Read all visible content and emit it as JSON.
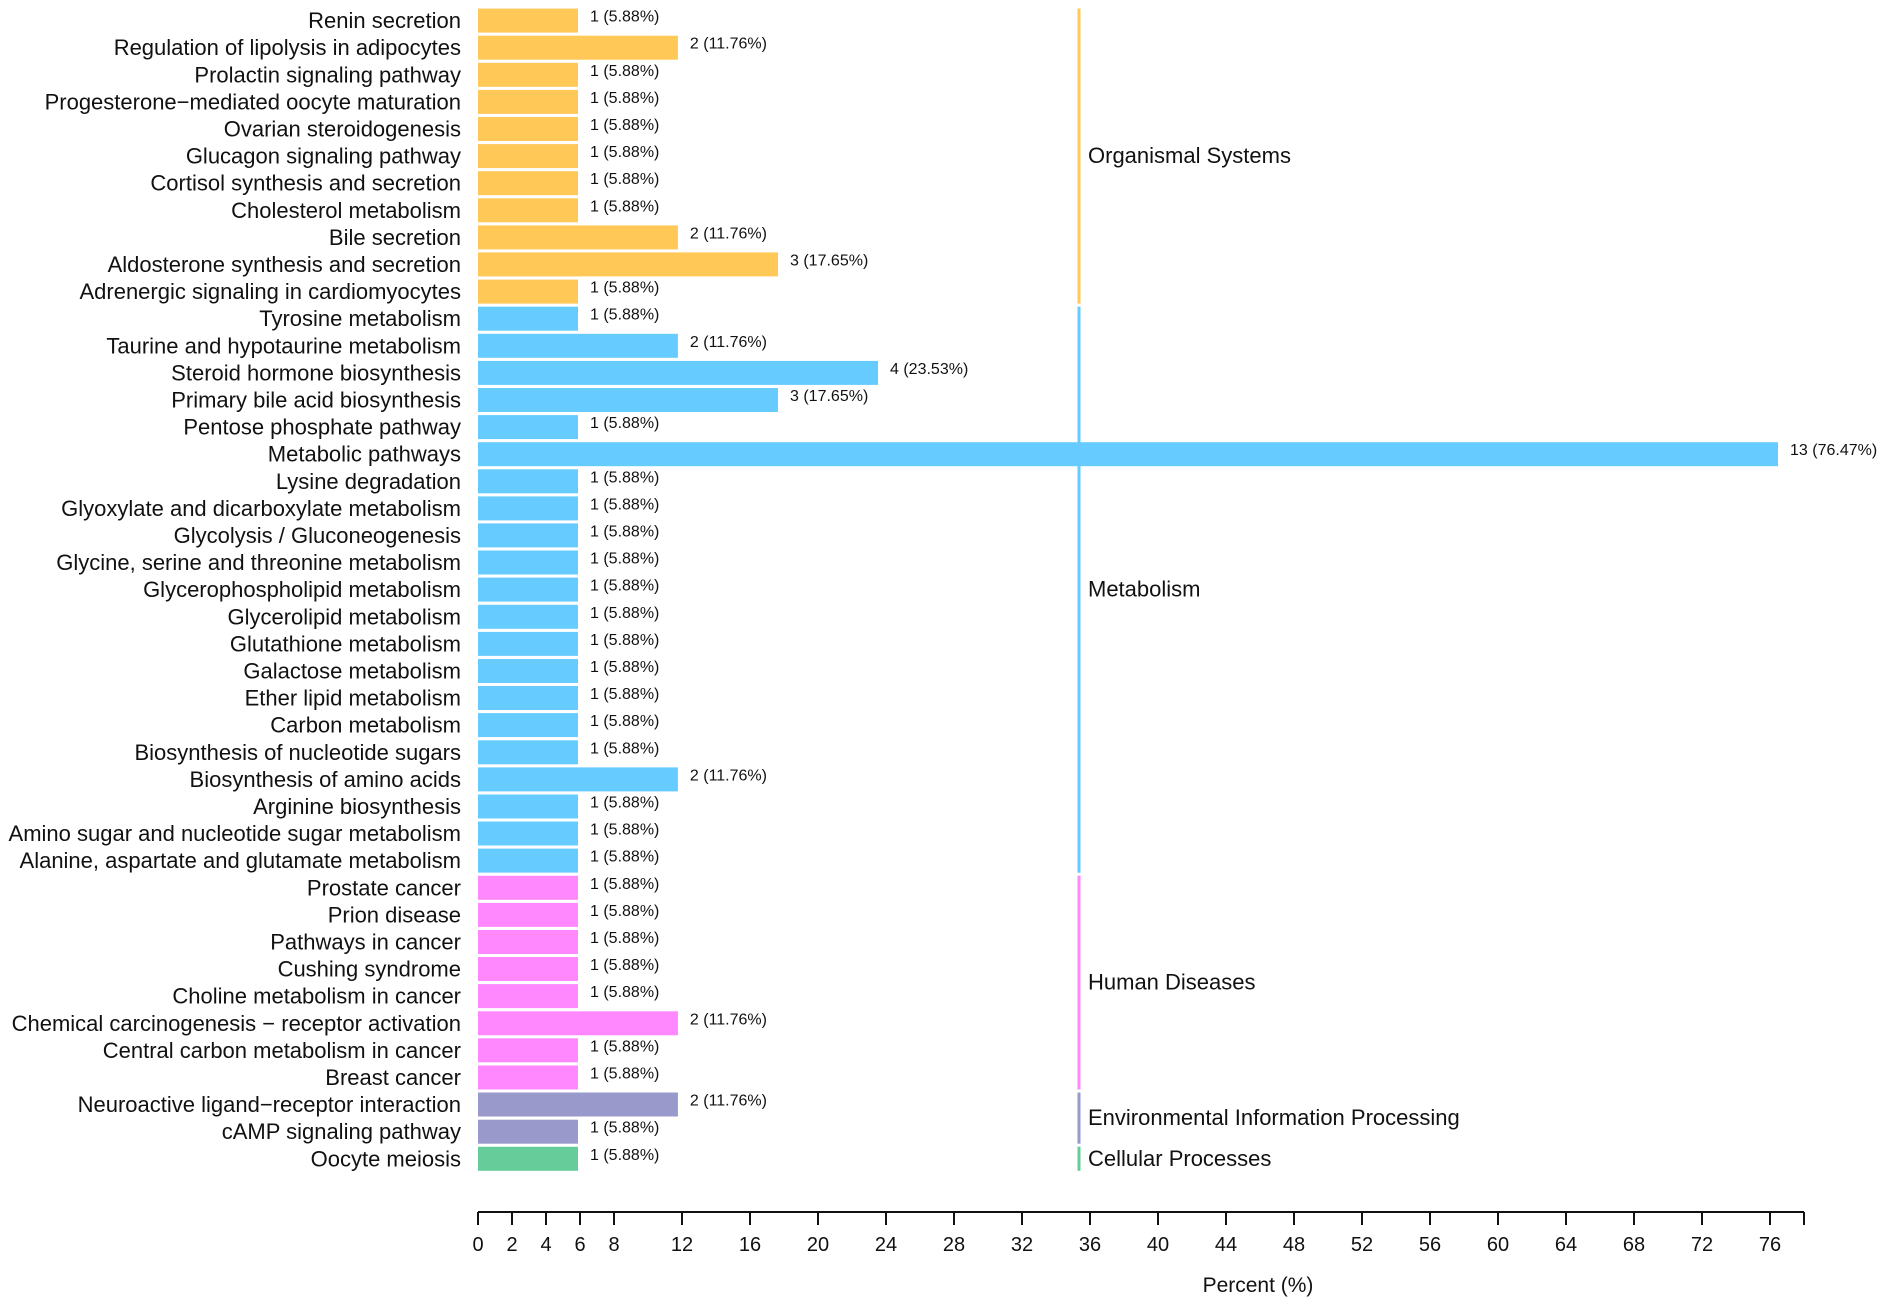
{
  "chart_data": {
    "type": "bar",
    "orientation": "horizontal",
    "title": "",
    "xlabel": "Percent (%)",
    "ylabel": "",
    "xlim": [
      0,
      78
    ],
    "xticks": [
      0,
      2,
      4,
      6,
      8,
      12,
      16,
      20,
      24,
      28,
      32,
      36,
      40,
      44,
      48,
      52,
      56,
      60,
      64,
      68,
      72,
      76
    ],
    "grid": false,
    "groups": [
      {
        "name": "Organismal Systems",
        "color": "#FFC857",
        "items": [
          {
            "label": "Renin secretion",
            "value": 5.88,
            "count": 1,
            "text": "1 (5.88%)"
          },
          {
            "label": "Regulation of lipolysis in adipocytes",
            "value": 11.76,
            "count": 2,
            "text": "2 (11.76%)"
          },
          {
            "label": "Prolactin signaling pathway",
            "value": 5.88,
            "count": 1,
            "text": "1 (5.88%)"
          },
          {
            "label": "Progesterone−mediated oocyte maturation",
            "value": 5.88,
            "count": 1,
            "text": "1 (5.88%)"
          },
          {
            "label": "Ovarian steroidogenesis",
            "value": 5.88,
            "count": 1,
            "text": "1 (5.88%)"
          },
          {
            "label": "Glucagon signaling pathway",
            "value": 5.88,
            "count": 1,
            "text": "1 (5.88%)"
          },
          {
            "label": "Cortisol synthesis and secretion",
            "value": 5.88,
            "count": 1,
            "text": "1 (5.88%)"
          },
          {
            "label": "Cholesterol metabolism",
            "value": 5.88,
            "count": 1,
            "text": "1 (5.88%)"
          },
          {
            "label": "Bile secretion",
            "value": 11.76,
            "count": 2,
            "text": "2 (11.76%)"
          },
          {
            "label": "Aldosterone synthesis and secretion",
            "value": 17.65,
            "count": 3,
            "text": "3 (17.65%)"
          },
          {
            "label": "Adrenergic signaling in cardiomyocytes",
            "value": 5.88,
            "count": 1,
            "text": "1 (5.88%)"
          }
        ]
      },
      {
        "name": "Metabolism",
        "color": "#66CCFF",
        "items": [
          {
            "label": "Tyrosine metabolism",
            "value": 5.88,
            "count": 1,
            "text": "1 (5.88%)"
          },
          {
            "label": "Taurine and hypotaurine metabolism",
            "value": 11.76,
            "count": 2,
            "text": "2 (11.76%)"
          },
          {
            "label": "Steroid hormone biosynthesis",
            "value": 23.53,
            "count": 4,
            "text": "4 (23.53%)"
          },
          {
            "label": "Primary bile acid biosynthesis",
            "value": 17.65,
            "count": 3,
            "text": "3 (17.65%)"
          },
          {
            "label": "Pentose phosphate pathway",
            "value": 5.88,
            "count": 1,
            "text": "1 (5.88%)"
          },
          {
            "label": "Metabolic pathways",
            "value": 76.47,
            "count": 13,
            "text": "13 (76.47%)"
          },
          {
            "label": "Lysine degradation",
            "value": 5.88,
            "count": 1,
            "text": "1 (5.88%)"
          },
          {
            "label": "Glyoxylate and dicarboxylate metabolism",
            "value": 5.88,
            "count": 1,
            "text": "1 (5.88%)"
          },
          {
            "label": "Glycolysis / Gluconeogenesis",
            "value": 5.88,
            "count": 1,
            "text": "1 (5.88%)"
          },
          {
            "label": "Glycine, serine and threonine metabolism",
            "value": 5.88,
            "count": 1,
            "text": "1 (5.88%)"
          },
          {
            "label": "Glycerophospholipid metabolism",
            "value": 5.88,
            "count": 1,
            "text": "1 (5.88%)"
          },
          {
            "label": "Glycerolipid metabolism",
            "value": 5.88,
            "count": 1,
            "text": "1 (5.88%)"
          },
          {
            "label": "Glutathione metabolism",
            "value": 5.88,
            "count": 1,
            "text": "1 (5.88%)"
          },
          {
            "label": "Galactose metabolism",
            "value": 5.88,
            "count": 1,
            "text": "1 (5.88%)"
          },
          {
            "label": "Ether lipid metabolism",
            "value": 5.88,
            "count": 1,
            "text": "1 (5.88%)"
          },
          {
            "label": "Carbon metabolism",
            "value": 5.88,
            "count": 1,
            "text": "1 (5.88%)"
          },
          {
            "label": "Biosynthesis of nucleotide sugars",
            "value": 5.88,
            "count": 1,
            "text": "1 (5.88%)"
          },
          {
            "label": "Biosynthesis of amino acids",
            "value": 11.76,
            "count": 2,
            "text": "2 (11.76%)"
          },
          {
            "label": "Arginine biosynthesis",
            "value": 5.88,
            "count": 1,
            "text": "1 (5.88%)"
          },
          {
            "label": "Amino sugar and nucleotide sugar metabolism",
            "value": 5.88,
            "count": 1,
            "text": "1 (5.88%)"
          },
          {
            "label": "Alanine, aspartate and glutamate metabolism",
            "value": 5.88,
            "count": 1,
            "text": "1 (5.88%)"
          }
        ]
      },
      {
        "name": "Human Diseases",
        "color": "#FF88FF",
        "items": [
          {
            "label": "Prostate cancer",
            "value": 5.88,
            "count": 1,
            "text": "1 (5.88%)"
          },
          {
            "label": "Prion disease",
            "value": 5.88,
            "count": 1,
            "text": "1 (5.88%)"
          },
          {
            "label": "Pathways in cancer",
            "value": 5.88,
            "count": 1,
            "text": "1 (5.88%)"
          },
          {
            "label": "Cushing syndrome",
            "value": 5.88,
            "count": 1,
            "text": "1 (5.88%)"
          },
          {
            "label": "Choline metabolism in cancer",
            "value": 5.88,
            "count": 1,
            "text": "1 (5.88%)"
          },
          {
            "label": "Chemical carcinogenesis − receptor activation",
            "value": 11.76,
            "count": 2,
            "text": "2 (11.76%)"
          },
          {
            "label": "Central carbon metabolism in cancer",
            "value": 5.88,
            "count": 1,
            "text": "1 (5.88%)"
          },
          {
            "label": "Breast cancer",
            "value": 5.88,
            "count": 1,
            "text": "1 (5.88%)"
          }
        ]
      },
      {
        "name": "Environmental Information Processing",
        "color": "#9999CC",
        "items": [
          {
            "label": "Neuroactive ligand−receptor interaction",
            "value": 11.76,
            "count": 2,
            "text": "2 (11.76%)"
          },
          {
            "label": "cAMP signaling pathway",
            "value": 5.88,
            "count": 1,
            "text": "1 (5.88%)"
          }
        ]
      },
      {
        "name": "Cellular Processes",
        "color": "#66CC99",
        "items": [
          {
            "label": "Oocyte meiosis",
            "value": 5.88,
            "count": 1,
            "text": "1 (5.88%)"
          }
        ]
      }
    ]
  }
}
